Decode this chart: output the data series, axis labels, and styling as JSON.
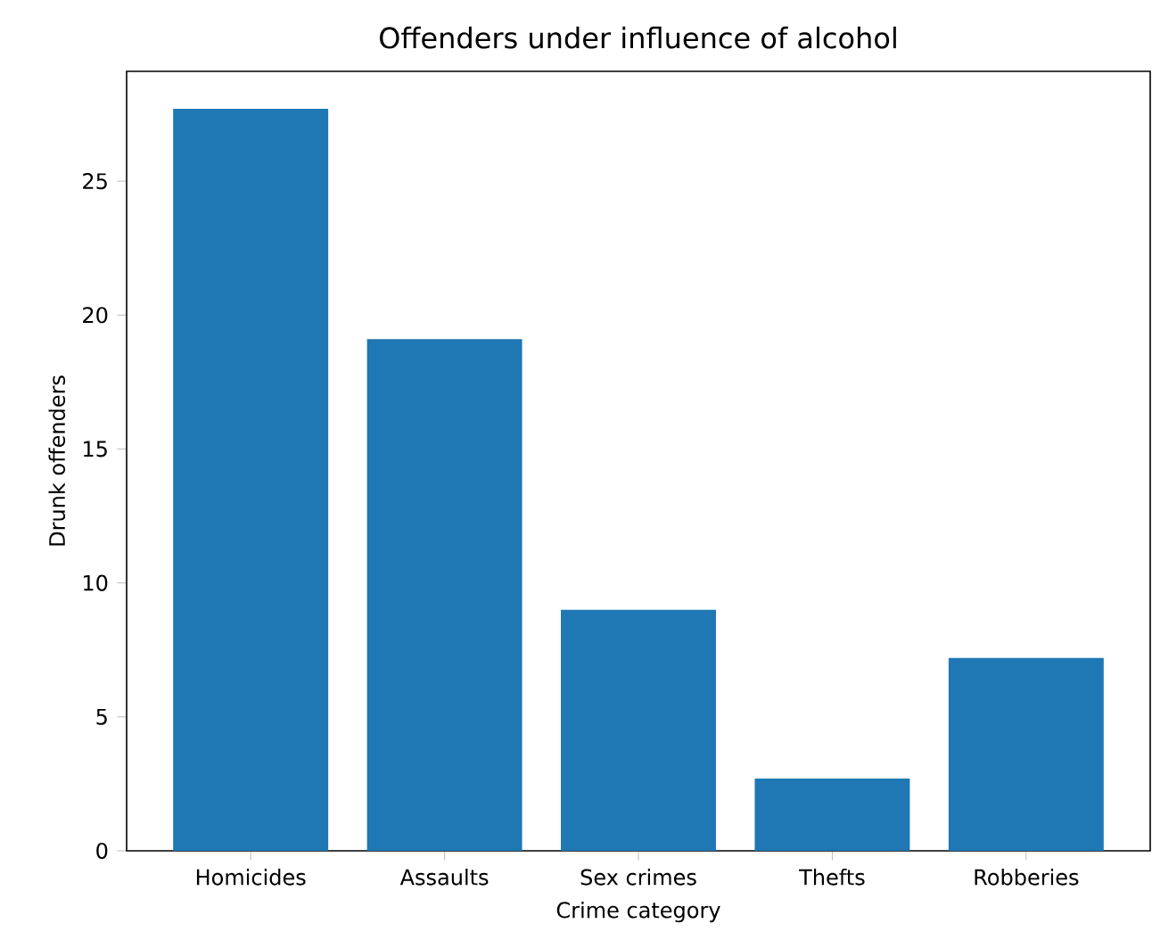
{
  "chart_data": {
    "type": "bar",
    "title": "Offenders under influence of alcohol",
    "xlabel": "Crime category",
    "ylabel": "Drunk offenders",
    "categories": [
      "Homicides",
      "Assaults",
      "Sex crimes",
      "Thefts",
      "Robberies"
    ],
    "values": [
      27.7,
      19.1,
      9.0,
      2.7,
      7.2
    ],
    "color": "#1f77b4",
    "ylim": [
      0,
      29.1
    ],
    "yticks": [
      0,
      5,
      10,
      15,
      20,
      25
    ]
  }
}
